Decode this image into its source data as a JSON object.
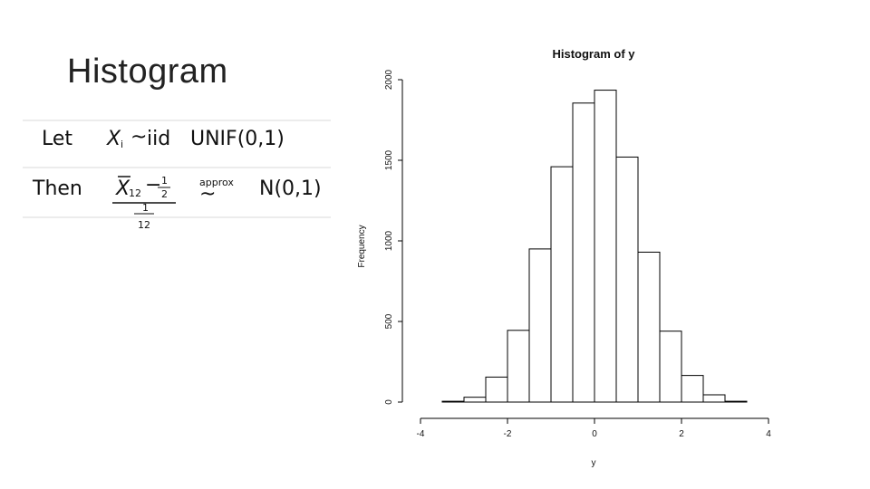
{
  "slide": {
    "title": "Histogram",
    "note_line1": [
      "Let",
      "X",
      "i",
      "~",
      "iid",
      "UNIF(0,1)"
    ],
    "note_line2": [
      "Then",
      "X",
      "12",
      "−",
      "1",
      "2",
      "approx",
      "~",
      "N(0,1)",
      "1",
      "12"
    ]
  },
  "chart_data": {
    "type": "bar",
    "title": "Histogram of y",
    "xlabel": "y",
    "ylabel": "Frequency",
    "bins": [
      {
        "x0": -4.0,
        "x1": -3.5,
        "count": 0
      },
      {
        "x0": -3.5,
        "x1": -3.0,
        "count": 5
      },
      {
        "x0": -3.0,
        "x1": -2.5,
        "count": 30
      },
      {
        "x0": -2.5,
        "x1": -2.0,
        "count": 155
      },
      {
        "x0": -2.0,
        "x1": -1.5,
        "count": 445
      },
      {
        "x0": -1.5,
        "x1": -1.0,
        "count": 950
      },
      {
        "x0": -1.0,
        "x1": -0.5,
        "count": 1460
      },
      {
        "x0": -0.5,
        "x1": 0.0,
        "count": 1855
      },
      {
        "x0": 0.0,
        "x1": 0.5,
        "count": 1935
      },
      {
        "x0": 0.5,
        "x1": 1.0,
        "count": 1520
      },
      {
        "x0": 1.0,
        "x1": 1.5,
        "count": 930
      },
      {
        "x0": 1.5,
        "x1": 2.0,
        "count": 440
      },
      {
        "x0": 2.0,
        "x1": 2.5,
        "count": 165
      },
      {
        "x0": 2.5,
        "x1": 3.0,
        "count": 45
      },
      {
        "x0": 3.0,
        "x1": 3.5,
        "count": 5
      },
      {
        "x0": 3.5,
        "x1": 4.0,
        "count": 0
      }
    ],
    "xticks": [
      "-4",
      "-2",
      "0",
      "2",
      "4"
    ],
    "xtick_values": [
      -4,
      -2,
      0,
      2,
      4
    ],
    "yticks": [
      "0",
      "500",
      "1000",
      "1500",
      "2000"
    ],
    "ytick_values": [
      0,
      500,
      1000,
      1500,
      2000
    ],
    "xlim": [
      -4,
      4
    ],
    "ylim": [
      0,
      2000
    ],
    "grid": false,
    "colors": {
      "bar_fill": "#ffffff",
      "bar_stroke": "#000000"
    }
  }
}
